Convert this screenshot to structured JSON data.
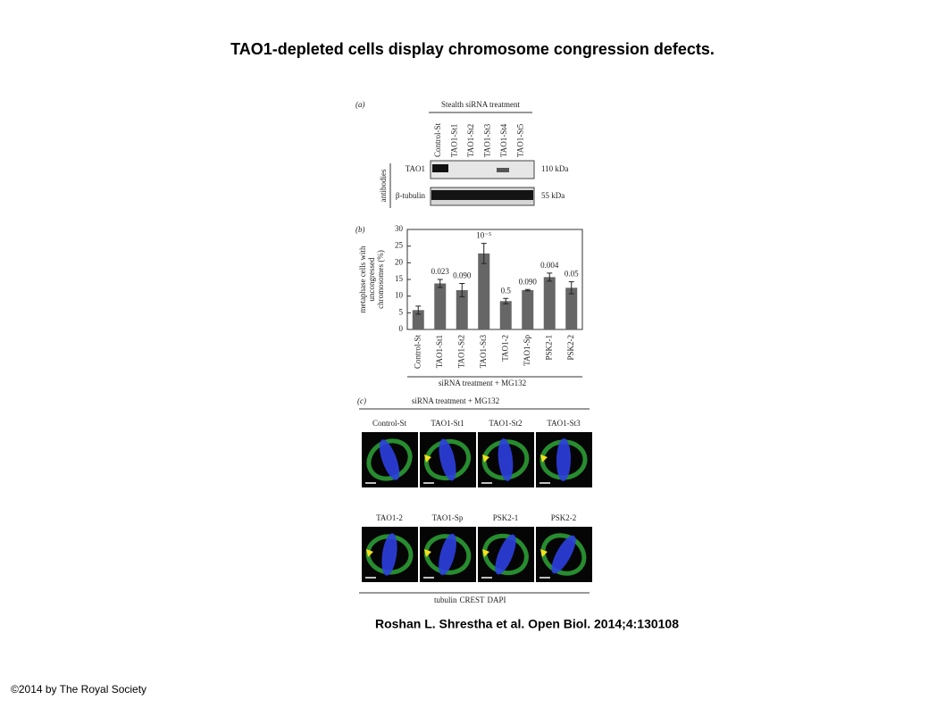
{
  "title": "TAO1-depleted cells display chromosome congression defects.",
  "citation": "Roshan L. Shrestha et al. Open Biol. 2014;4:130108",
  "copyright": "©2014 by The Royal Society",
  "panel_a": {
    "label": "(a)",
    "header": "Stealth siRNA treatment",
    "lanes": [
      "Control-St",
      "TAO1-St1",
      "TAO1-St2",
      "TAO1-St3",
      "TAO1-St4",
      "TAO1-St5"
    ],
    "side_label": "antibodies",
    "rows": [
      {
        "antibody": "TAO1",
        "size": "110 kDa"
      },
      {
        "antibody": "β-tubulin",
        "size": "55 kDa"
      }
    ]
  },
  "chart_data": {
    "type": "bar",
    "label": "(b)",
    "y_label": [
      "metaphase cells with",
      "uncongressed",
      "chromosomes (%)"
    ],
    "x_label": "siRNA treatment + MG132",
    "categories": [
      "Control-St",
      "TAO1-St1",
      "TAO1-St2",
      "TAO1-St3",
      "TAO1-2",
      "TAO1-Sp",
      "PSK2-1",
      "PSK2-2"
    ],
    "values": [
      5.8,
      13.8,
      11.8,
      22.8,
      8.5,
      11.8,
      15.7,
      12.5
    ],
    "errors": [
      1.2,
      1.2,
      2.0,
      3.0,
      0.8,
      0.2,
      1.2,
      1.8
    ],
    "annotations": [
      null,
      "0.023",
      "0.090",
      "10⁻⁵",
      "0.5",
      "0.090",
      "0.004",
      "0.05"
    ],
    "color": "#666666",
    "ylim": [
      0,
      30
    ],
    "yticks": [
      0,
      5,
      10,
      15,
      20,
      25,
      30
    ]
  },
  "panel_c": {
    "label": "(c)",
    "header": "siRNA treatment + MG132",
    "images": [
      "Control-St",
      "TAO1-St1",
      "TAO1-St2",
      "TAO1-St3",
      "TAO1-2",
      "TAO1-Sp",
      "PSK2-1",
      "PSK2-2"
    ],
    "legend": [
      {
        "text": "tubulin",
        "color": "#2e9a3e"
      },
      {
        "text": "CREST",
        "color": "#d62020"
      },
      {
        "text": "DAPI",
        "color": "#2a3fd6"
      }
    ]
  }
}
